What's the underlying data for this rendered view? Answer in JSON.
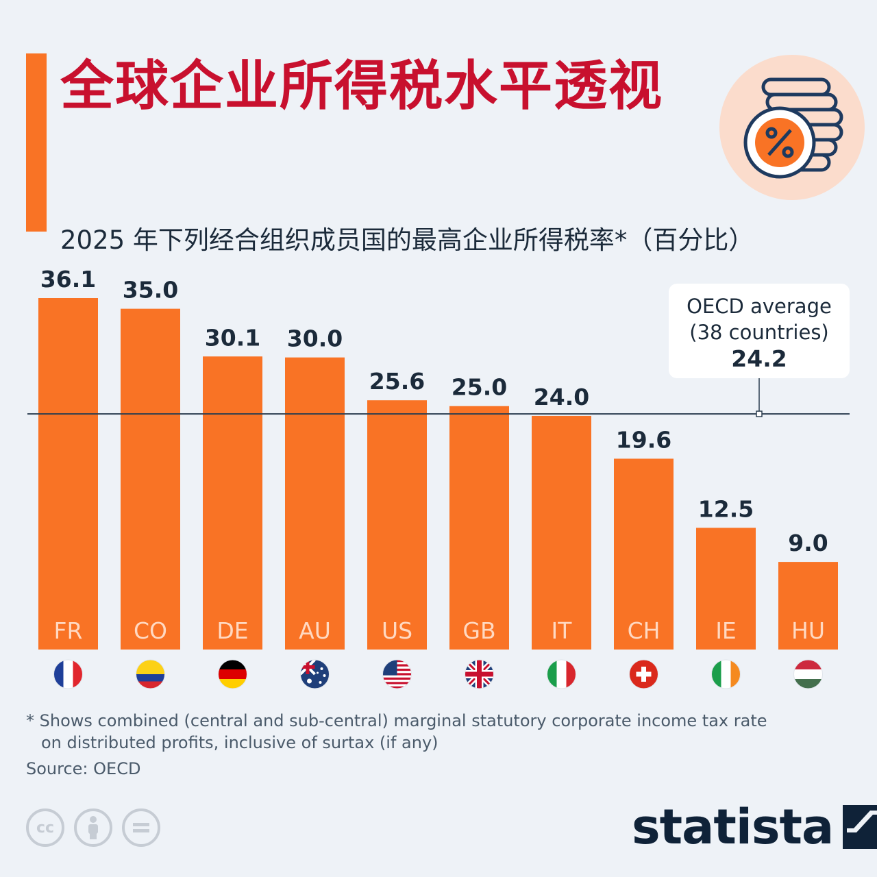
{
  "title": "全球企业所得税水平透视",
  "subtitle": "2025 年下列经合组织成员国的最高企业所得税率*（百分比）",
  "icon": "percent-coin-stack-icon",
  "colors": {
    "bar": "#f97325",
    "title": "#c8102e",
    "text": "#1b2a3a",
    "background": "#eef2f7",
    "reference_line": "#2c3e50"
  },
  "chart_data": {
    "type": "bar",
    "title": "2025 年下列经合组织成员国的最高企业所得税率*（百分比）",
    "categories": [
      "FR",
      "CO",
      "DE",
      "AU",
      "US",
      "GB",
      "IT",
      "CH",
      "IE",
      "HU"
    ],
    "values": [
      36.1,
      35.0,
      30.1,
      30.0,
      25.6,
      25.0,
      24.0,
      19.6,
      12.5,
      9.0
    ],
    "value_labels": [
      "36.1",
      "35.0",
      "30.1",
      "30.0",
      "25.6",
      "25.0",
      "24.0",
      "19.6",
      "12.5",
      "9.0"
    ],
    "flags": [
      "flag-france-icon",
      "flag-colombia-icon",
      "flag-germany-icon",
      "flag-australia-icon",
      "flag-usa-icon",
      "flag-uk-icon",
      "flag-italy-icon",
      "flag-switzerland-icon",
      "flag-ireland-icon",
      "flag-hungary-icon"
    ],
    "ylim": [
      0,
      36.1
    ],
    "xlabel": "",
    "ylabel": "",
    "grid": false,
    "reference_line": {
      "value": 24.2,
      "label_line1": "OECD average",
      "label_line2": "(38 countries)",
      "label_value": "24.2",
      "label_position": "top-right"
    }
  },
  "footnote": {
    "line1": "* Shows combined (central and sub-central) marginal statutory corporate income tax rate",
    "line2": "on distributed profits, inclusive of surtax (if any)"
  },
  "source": "Source: OECD",
  "license_icons": [
    "cc-icon",
    "by-icon",
    "nd-icon"
  ],
  "brand": "statista"
}
